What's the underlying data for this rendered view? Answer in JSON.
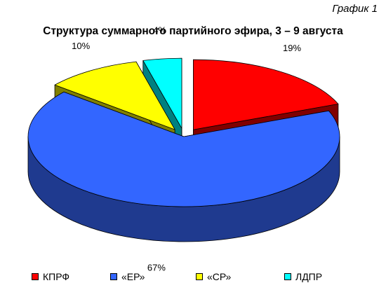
{
  "chart_label": "График 1",
  "chart_data": {
    "type": "pie",
    "title": "Структура суммарного партийного эфира, 3 – 9 августа",
    "slices": [
      {
        "label": "КПРФ",
        "value": 19,
        "display": "19%",
        "color": "#ff0000",
        "side_color": "#800000"
      },
      {
        "label": "«ЕР»",
        "value": 67,
        "display": "67%",
        "color": "#3366ff",
        "side_color": "#1f3a8f"
      },
      {
        "label": "«СР»",
        "value": 10,
        "display": "10%",
        "color": "#ffff00",
        "side_color": "#808000"
      },
      {
        "label": "ЛДПР",
        "value": 4,
        "display": "4%",
        "color": "#00ffff",
        "side_color": "#008080"
      }
    ],
    "legend_position": "bottom",
    "three_d": true,
    "exploded": [
      "КПРФ",
      "«СР»",
      "ЛДПР"
    ]
  }
}
